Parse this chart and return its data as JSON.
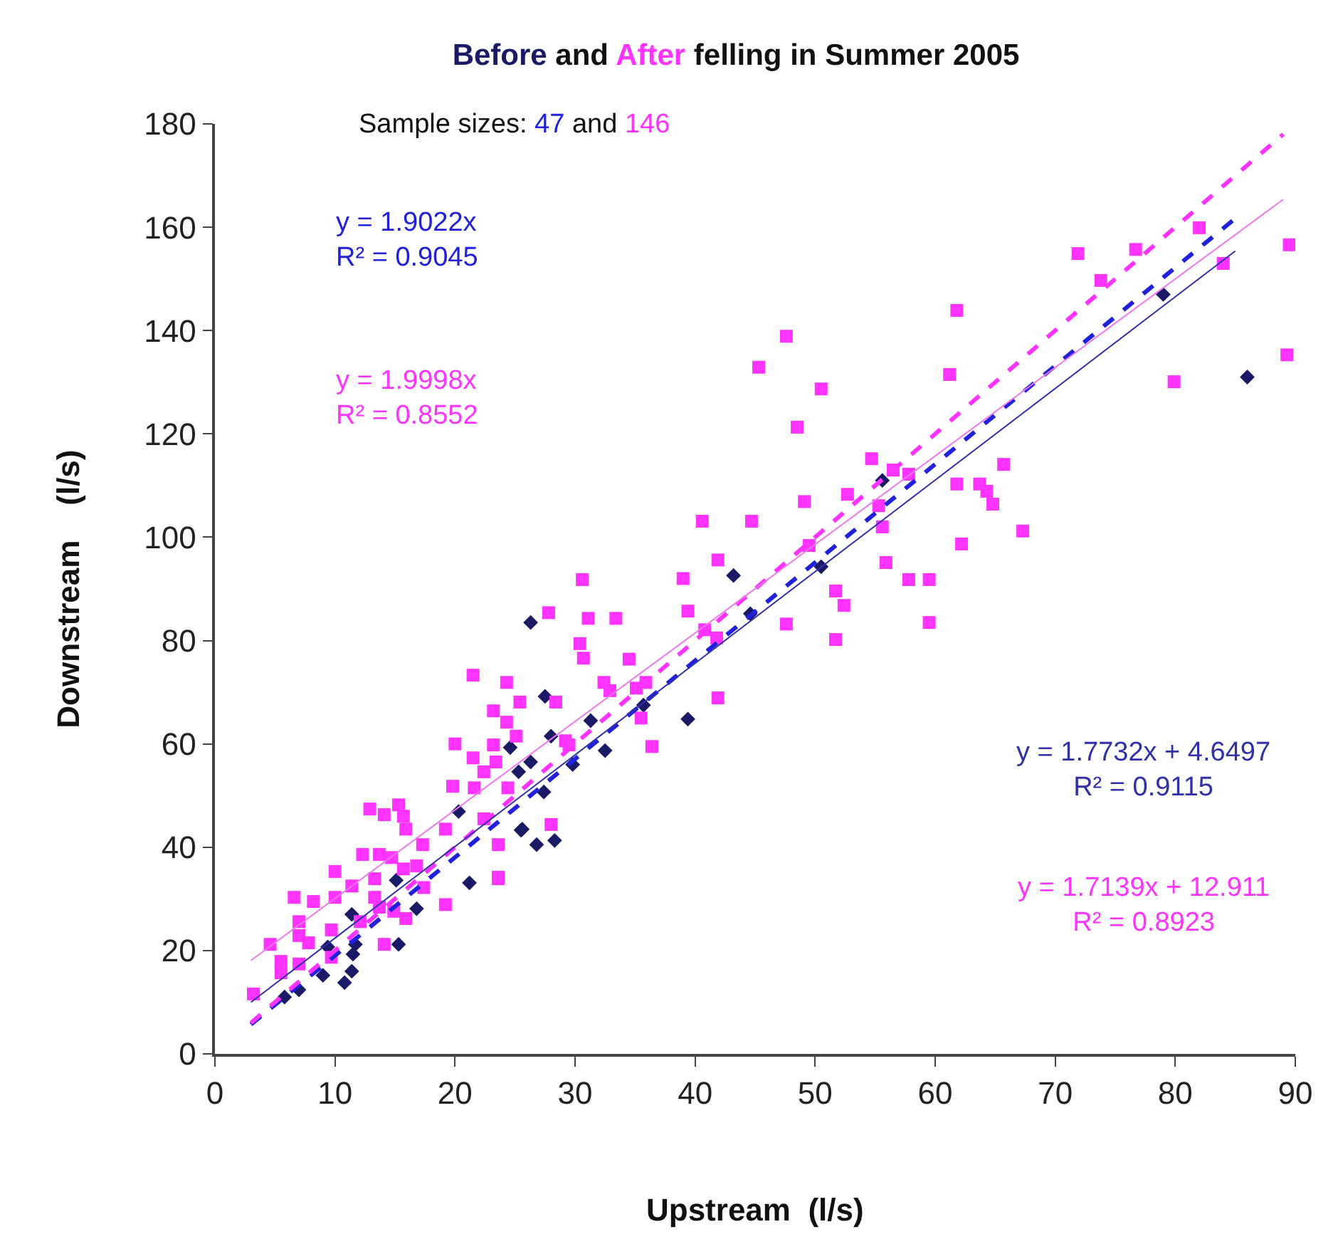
{
  "chart_data": {
    "type": "scatter",
    "title": "Before and After felling in Summer 2005",
    "xlabel": "Upstream  (l/s)",
    "ylabel": "Downstream    (l/s)",
    "xlim": [
      0,
      90
    ],
    "xticks": [
      0,
      10,
      20,
      30,
      40,
      50,
      60,
      70,
      80,
      90
    ],
    "ylim": [
      0,
      180
    ],
    "yticks": [
      0,
      20,
      40,
      60,
      80,
      100,
      120,
      140,
      160,
      180
    ],
    "annotations": [
      "Sample sizes: 47 and 146",
      "y = 1.9022x\nR² = 0.9045",
      "y = 1.9998x\nR² = 0.8552",
      "y = 1.7732x + 4.6497\nR² = 0.9115",
      "y = 1.7139x + 12.911\nR² = 0.8923"
    ],
    "series": [
      {
        "color": "#1a1a66",
        "marker": "diamond",
        "x": [
          24.6,
          25.3,
          20.3,
          25.5,
          21.2,
          16.8,
          15.1,
          15.3,
          11.7,
          11.5,
          11.4,
          10.8,
          9.4,
          9.0,
          7.0,
          5.8,
          11.4,
          43.2,
          44.6,
          26.3,
          27.5,
          31.3,
          35.7,
          39.4,
          28.0,
          32.5,
          26.3,
          29.8,
          27.4,
          25.6,
          26.8,
          28.3,
          55.6,
          79.0,
          86.0,
          50.5
        ],
        "values": [
          59.3,
          54.6,
          46.9,
          43.3,
          33.1,
          28.1,
          33.6,
          21.2,
          21.2,
          19.3,
          16.0,
          13.8,
          20.7,
          15.2,
          12.4,
          11.0,
          27.0,
          92.6,
          85.2,
          83.5,
          69.2,
          64.5,
          67.5,
          64.8,
          61.5,
          58.7,
          56.5,
          56.0,
          50.7,
          43.5,
          40.5,
          41.3,
          111.0,
          147.0,
          131.0,
          94.3
        ]
      },
      {
        "color": "#ff33ff",
        "marker": "square",
        "x": [
          20.0,
          21.5,
          23.2,
          22.4,
          19.8,
          21.6,
          24.4,
          12.9,
          14.1,
          15.3,
          15.7,
          15.9,
          19.2,
          17.3,
          23.6,
          12.3,
          13.7,
          14.7,
          10.0,
          11.4,
          13.3,
          15.7,
          16.8,
          6.6,
          8.2,
          10.0,
          13.3,
          23.6,
          19.2,
          17.4,
          7.0,
          9.7,
          12.1,
          13.7,
          14.9,
          15.9,
          7.0,
          7.8,
          4.6,
          14.1,
          5.5,
          7.0,
          5.5,
          3.2,
          9.7,
          41.9,
          39.0,
          30.6,
          27.8,
          31.1,
          33.4,
          39.4,
          30.4,
          30.7,
          34.5,
          21.5,
          24.3,
          32.4,
          32.9,
          35.1,
          35.9,
          25.4,
          28.4,
          41.9,
          23.2,
          24.3,
          25.1,
          35.5,
          36.4,
          29.2,
          29.5,
          23.4,
          22.4,
          28.0,
          23.6,
          89.5,
          89.3,
          82.0,
          84.0,
          76.7,
          71.9,
          73.8,
          79.9,
          61.8,
          61.2,
          47.6,
          45.3,
          50.5,
          48.5,
          54.7,
          56.5,
          57.8,
          65.7,
          61.8,
          63.7,
          64.3,
          64.8,
          49.1,
          52.7,
          55.3,
          55.6,
          67.3,
          40.6,
          44.7,
          62.2,
          49.5,
          55.9,
          57.8,
          59.5,
          51.7,
          52.4,
          47.6,
          59.5,
          51.7,
          40.8,
          41.8
        ],
        "values": [
          60.0,
          57.3,
          59.8,
          54.6,
          51.8,
          51.5,
          51.5,
          47.4,
          46.3,
          48.2,
          46.0,
          43.5,
          43.5,
          40.5,
          40.5,
          38.6,
          38.6,
          38.0,
          35.3,
          32.5,
          33.9,
          35.8,
          36.4,
          30.3,
          29.5,
          30.3,
          30.3,
          33.9,
          28.9,
          32.2,
          25.6,
          24.0,
          25.6,
          28.4,
          27.6,
          26.2,
          22.9,
          21.5,
          21.2,
          21.2,
          17.9,
          17.4,
          15.7,
          11.6,
          18.7,
          95.6,
          92.0,
          91.8,
          85.4,
          84.3,
          84.3,
          85.7,
          79.4,
          76.6,
          76.4,
          73.3,
          71.9,
          71.9,
          70.3,
          70.8,
          71.9,
          68.1,
          68.1,
          68.9,
          66.4,
          64.2,
          61.5,
          65.0,
          59.5,
          60.6,
          59.8,
          56.5,
          45.5,
          44.4,
          34.2,
          156.6,
          135.3,
          159.9,
          153.0,
          155.7,
          154.9,
          149.7,
          130.1,
          143.9,
          131.5,
          138.9,
          132.9,
          128.7,
          121.3,
          115.2,
          113.0,
          112.2,
          114.1,
          110.3,
          110.3,
          108.9,
          106.4,
          106.9,
          108.3,
          106.1,
          102.0,
          101.2,
          103.1,
          103.1,
          98.7,
          98.4,
          95.1,
          91.8,
          91.8,
          89.6,
          86.8,
          83.2,
          83.5,
          80.2,
          82.1,
          80.5
        ]
      },
      {
        "type": "line",
        "color": "#2020dd",
        "line_style": "dashed",
        "marker": "none",
        "x": [
          3,
          85
        ],
        "values": [
          5.7,
          161.7
        ]
      },
      {
        "type": "line",
        "color": "#ff33ff",
        "line_style": "dashed",
        "marker": "none",
        "x": [
          3,
          89
        ],
        "values": [
          6.0,
          178.0
        ]
      },
      {
        "type": "line",
        "color": "#3030aa",
        "line_style": "solid",
        "marker": "none",
        "x": [
          3,
          85
        ],
        "values": [
          10.0,
          155.4
        ]
      },
      {
        "type": "line",
        "color": "#ee77ee",
        "line_style": "solid",
        "marker": "none",
        "x": [
          3,
          89
        ],
        "values": [
          18.1,
          165.4
        ]
      }
    ]
  }
}
